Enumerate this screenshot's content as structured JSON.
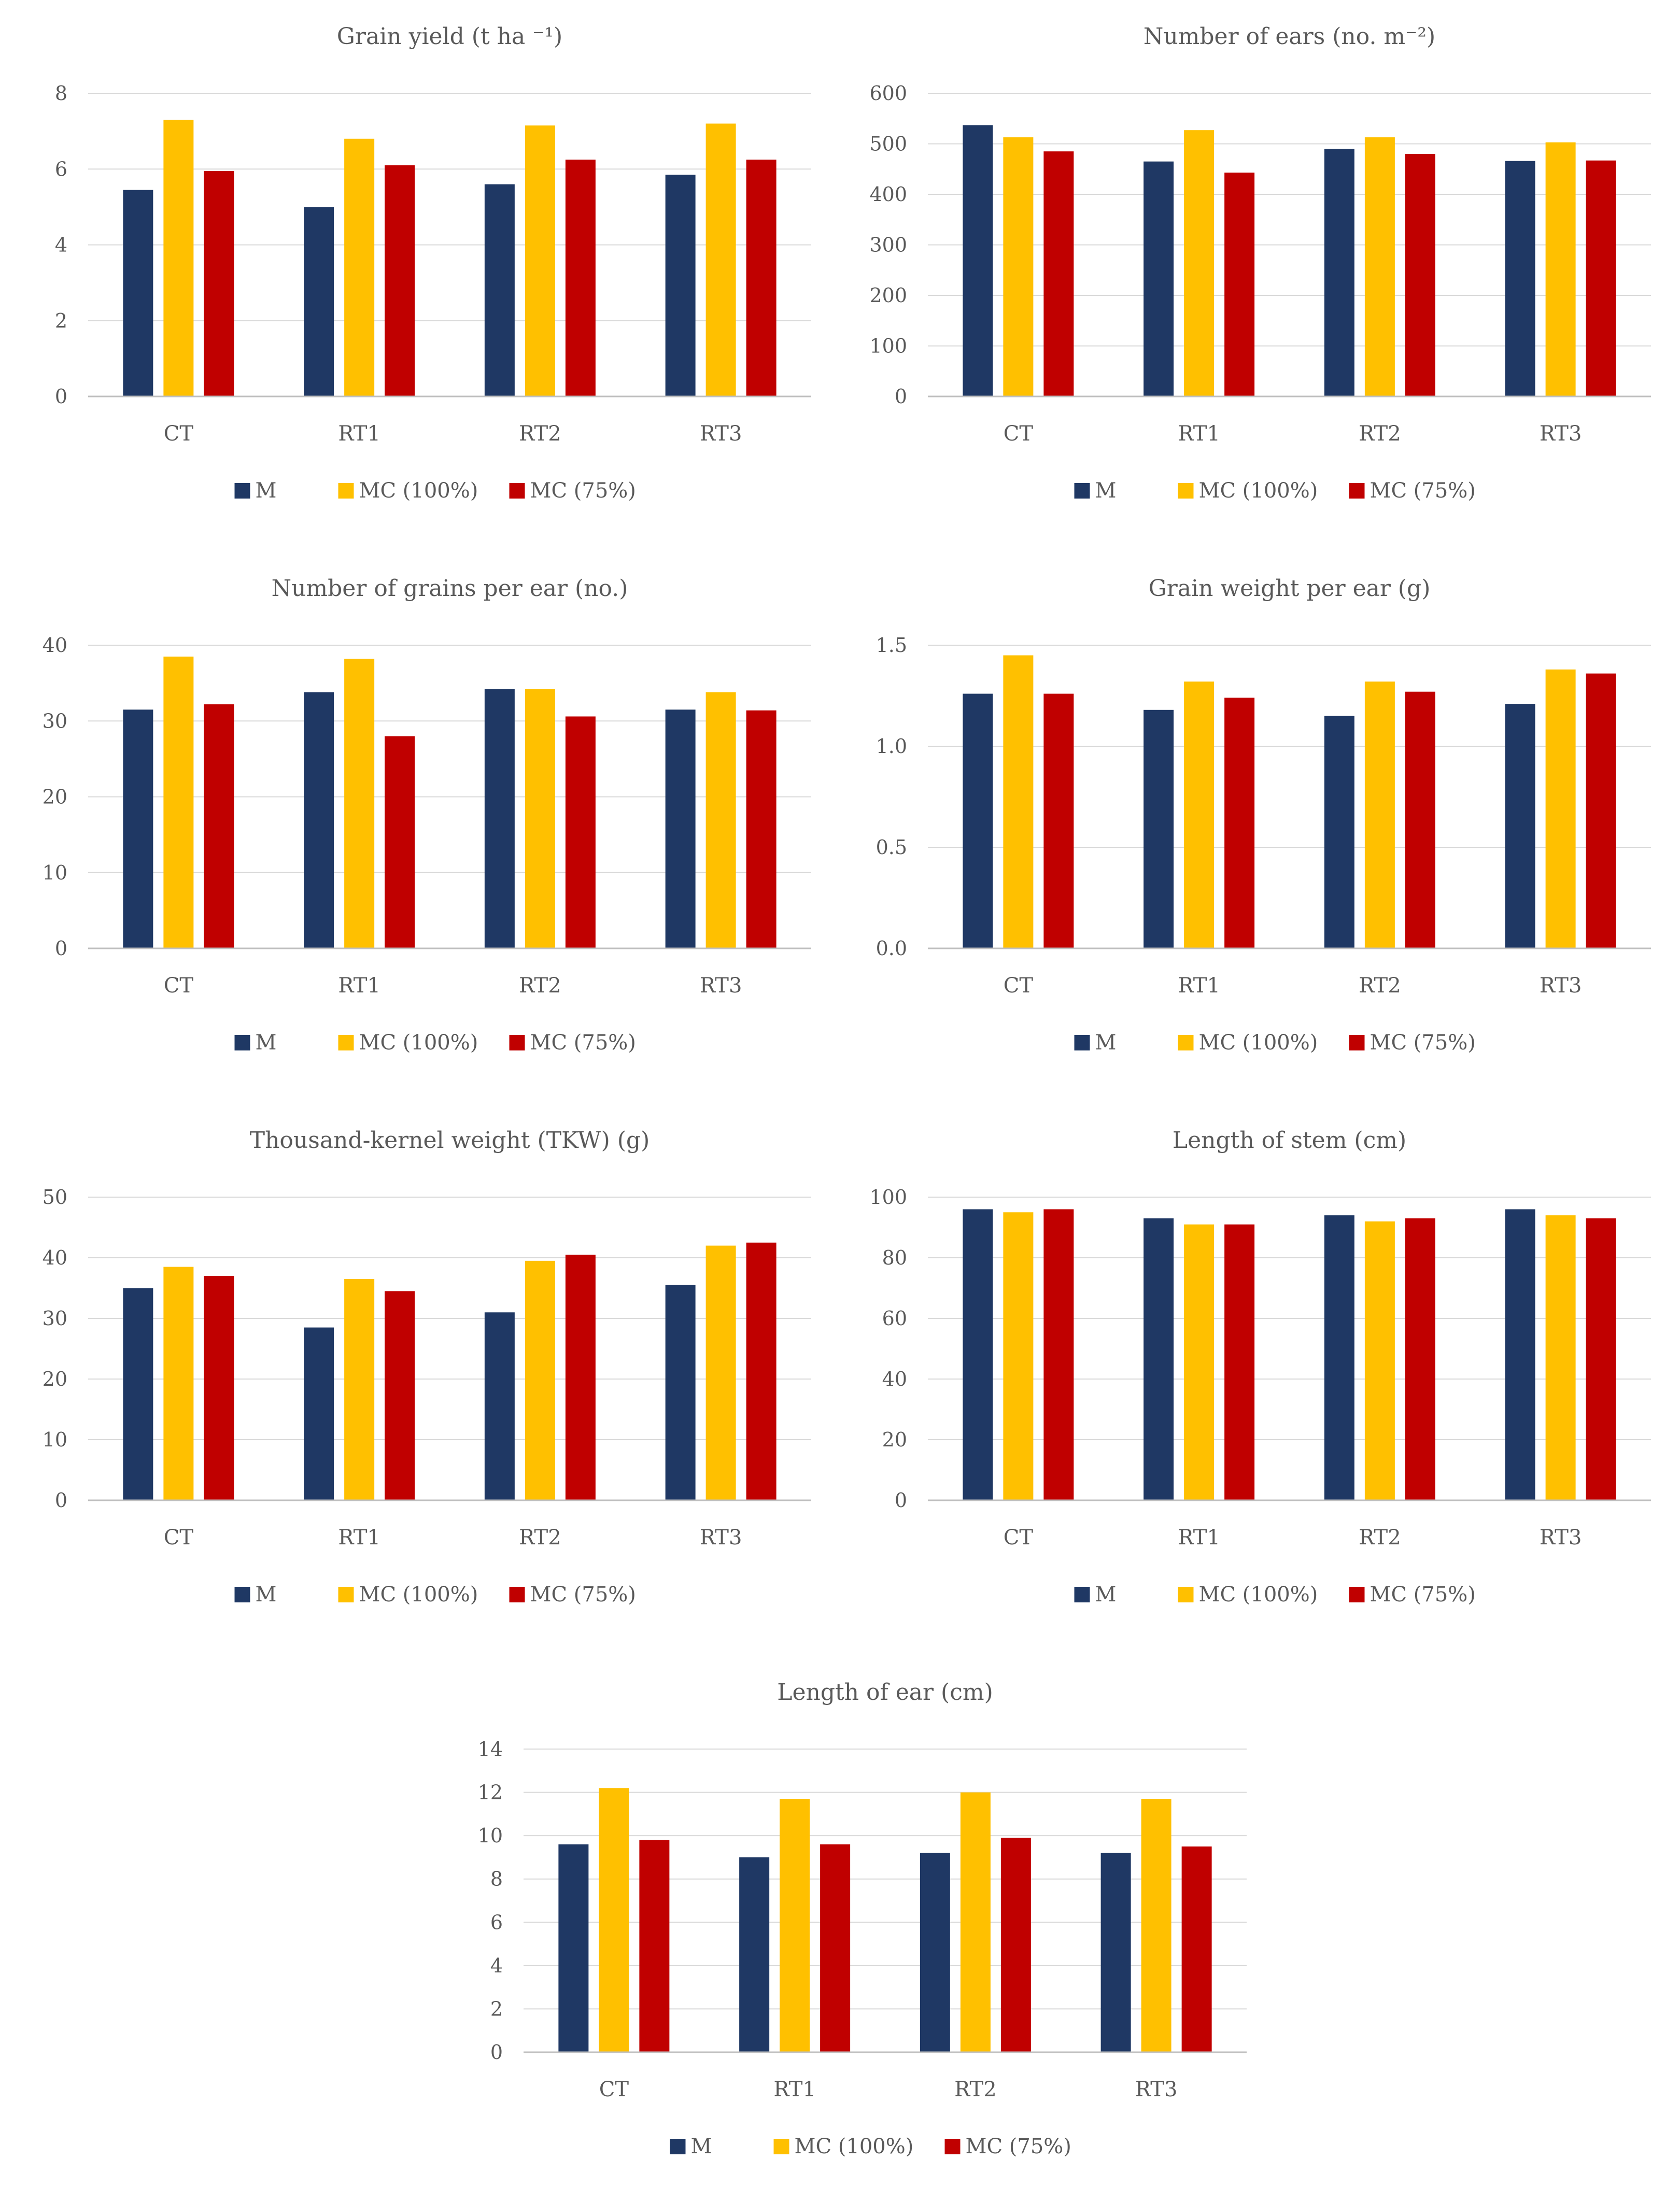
{
  "chart_data": [
    {
      "type": "bar",
      "title": "Grain yield (t ha ⁻¹)",
      "categories": [
        "CT",
        "RT1",
        "RT2",
        "RT3"
      ],
      "series": [
        {
          "name": "M",
          "values": [
            5.45,
            5.0,
            5.6,
            5.85
          ]
        },
        {
          "name": "MC (100%)",
          "values": [
            7.3,
            6.8,
            7.15,
            7.2
          ]
        },
        {
          "name": "MC (75%)",
          "values": [
            5.95,
            6.1,
            6.25,
            6.25
          ]
        }
      ],
      "yticks": [
        "0",
        "2",
        "4",
        "6",
        "8"
      ],
      "ylim": [
        0,
        8
      ],
      "grid": true,
      "legend": "bottom"
    },
    {
      "type": "bar",
      "title": "Number of ears (no. m⁻²)",
      "categories": [
        "CT",
        "RT1",
        "RT2",
        "RT3"
      ],
      "series": [
        {
          "name": "M",
          "values": [
            537,
            465,
            490,
            466
          ]
        },
        {
          "name": "MC (100%)",
          "values": [
            513,
            527,
            513,
            503
          ]
        },
        {
          "name": "MC (75%)",
          "values": [
            485,
            443,
            480,
            467
          ]
        }
      ],
      "yticks": [
        "0",
        "100",
        "200",
        "300",
        "400",
        "500",
        "600"
      ],
      "ylim": [
        0,
        600
      ],
      "grid": true,
      "legend": "bottom"
    },
    {
      "type": "bar",
      "title": "Number of grains per ear (no.)",
      "categories": [
        "CT",
        "RT1",
        "RT2",
        "RT3"
      ],
      "series": [
        {
          "name": "M",
          "values": [
            31.5,
            33.8,
            34.2,
            31.5
          ]
        },
        {
          "name": "MC (100%)",
          "values": [
            38.5,
            38.2,
            34.2,
            33.8
          ]
        },
        {
          "name": "MC (75%)",
          "values": [
            32.2,
            28.0,
            30.6,
            31.4
          ]
        }
      ],
      "yticks": [
        "0",
        "10",
        "20",
        "30",
        "40"
      ],
      "ylim": [
        0,
        40
      ],
      "grid": true,
      "legend": "bottom"
    },
    {
      "type": "bar",
      "title": "Grain weight per ear (g)",
      "categories": [
        "CT",
        "RT1",
        "RT2",
        "RT3"
      ],
      "series": [
        {
          "name": "M",
          "values": [
            1.26,
            1.18,
            1.15,
            1.21
          ]
        },
        {
          "name": "MC (100%)",
          "values": [
            1.45,
            1.32,
            1.32,
            1.38
          ]
        },
        {
          "name": "MC (75%)",
          "values": [
            1.26,
            1.24,
            1.27,
            1.36
          ]
        }
      ],
      "yticks": [
        "0.0",
        "0.5",
        "1.0",
        "1.5"
      ],
      "ylim": [
        0,
        1.5
      ],
      "grid": true,
      "legend": "bottom"
    },
    {
      "type": "bar",
      "title": "Thousand-kernel weight (TKW) (g)",
      "categories": [
        "CT",
        "RT1",
        "RT2",
        "RT3"
      ],
      "series": [
        {
          "name": "M",
          "values": [
            35.0,
            28.5,
            31.0,
            35.5
          ]
        },
        {
          "name": "MC (100%)",
          "values": [
            38.5,
            36.5,
            39.5,
            42.0
          ]
        },
        {
          "name": "MC (75%)",
          "values": [
            37.0,
            34.5,
            40.5,
            42.5
          ]
        }
      ],
      "yticks": [
        "0",
        "10",
        "20",
        "30",
        "40",
        "50"
      ],
      "ylim": [
        0,
        50
      ],
      "grid": true,
      "legend": "bottom"
    },
    {
      "type": "bar",
      "title": "Length of stem (cm)",
      "categories": [
        "CT",
        "RT1",
        "RT2",
        "RT3"
      ],
      "series": [
        {
          "name": "M",
          "values": [
            96,
            93,
            94,
            96
          ]
        },
        {
          "name": "MC (100%)",
          "values": [
            95,
            91,
            92,
            94
          ]
        },
        {
          "name": "MC (75%)",
          "values": [
            96,
            91,
            93,
            93
          ]
        }
      ],
      "yticks": [
        "0",
        "20",
        "40",
        "60",
        "80",
        "100"
      ],
      "ylim": [
        0,
        100
      ],
      "grid": true,
      "legend": "bottom"
    },
    {
      "type": "bar",
      "title": "Length of ear (cm)",
      "categories": [
        "CT",
        "RT1",
        "RT2",
        "RT3"
      ],
      "series": [
        {
          "name": "M",
          "values": [
            9.6,
            9.0,
            9.2,
            9.2
          ]
        },
        {
          "name": "MC (100%)",
          "values": [
            12.2,
            11.7,
            12.0,
            11.7
          ]
        },
        {
          "name": "MC (75%)",
          "values": [
            9.8,
            9.6,
            9.9,
            9.5
          ]
        }
      ],
      "yticks": [
        "0",
        "2",
        "4",
        "6",
        "8",
        "10",
        "12",
        "14"
      ],
      "ylim": [
        0,
        14
      ],
      "grid": true,
      "legend": "bottom"
    }
  ],
  "colors": {
    "M": "#1f3864",
    "MC (100%)": "#ffc000",
    "MC (75%)": "#c00000"
  }
}
